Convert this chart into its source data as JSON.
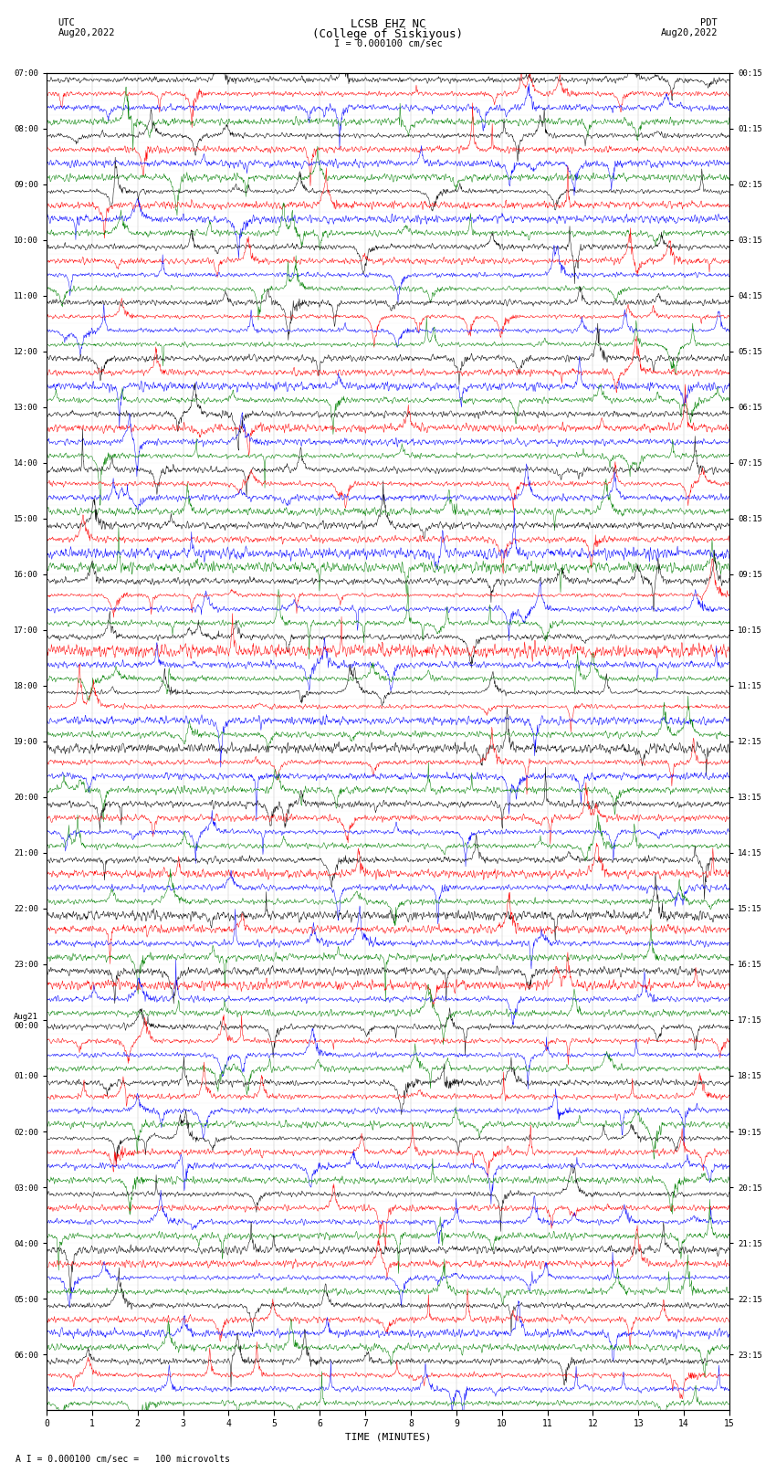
{
  "title_line1": "LCSB EHZ NC",
  "title_line2": "(College of Siskiyous)",
  "scale_text": "I = 0.000100 cm/sec",
  "footer_text": "A I = 0.000100 cm/sec =   100 microvolts",
  "xlabel": "TIME (MINUTES)",
  "bg_color": "#ffffff",
  "trace_colors": [
    "black",
    "red",
    "blue",
    "green"
  ],
  "n_rows": 96,
  "left_times": [
    "07:00",
    "",
    "",
    "",
    "08:00",
    "",
    "",
    "",
    "09:00",
    "",
    "",
    "",
    "10:00",
    "",
    "",
    "",
    "11:00",
    "",
    "",
    "",
    "12:00",
    "",
    "",
    "",
    "13:00",
    "",
    "",
    "",
    "14:00",
    "",
    "",
    "",
    "15:00",
    "",
    "",
    "",
    "16:00",
    "",
    "",
    "",
    "17:00",
    "",
    "",
    "",
    "18:00",
    "",
    "",
    "",
    "19:00",
    "",
    "",
    "",
    "20:00",
    "",
    "",
    "",
    "21:00",
    "",
    "",
    "",
    "22:00",
    "",
    "",
    "",
    "23:00",
    "",
    "",
    "",
    "Aug21\n00:00",
    "",
    "",
    "",
    "01:00",
    "",
    "",
    "",
    "02:00",
    "",
    "",
    "",
    "03:00",
    "",
    "",
    "",
    "04:00",
    "",
    "",
    "",
    "05:00",
    "",
    "",
    "",
    "06:00",
    "",
    "",
    ""
  ],
  "right_times": [
    "00:15",
    "",
    "",
    "",
    "01:15",
    "",
    "",
    "",
    "02:15",
    "",
    "",
    "",
    "03:15",
    "",
    "",
    "",
    "04:15",
    "",
    "",
    "",
    "05:15",
    "",
    "",
    "",
    "06:15",
    "",
    "",
    "",
    "07:15",
    "",
    "",
    "",
    "08:15",
    "",
    "",
    "",
    "09:15",
    "",
    "",
    "",
    "10:15",
    "",
    "",
    "",
    "11:15",
    "",
    "",
    "",
    "12:15",
    "",
    "",
    "",
    "13:15",
    "",
    "",
    "",
    "14:15",
    "",
    "",
    "",
    "15:15",
    "",
    "",
    "",
    "16:15",
    "",
    "",
    "",
    "17:15",
    "",
    "",
    "",
    "18:15",
    "",
    "",
    "",
    "19:15",
    "",
    "",
    "",
    "20:15",
    "",
    "",
    "",
    "21:15",
    "",
    "",
    "",
    "22:15",
    "",
    "",
    "",
    "23:15",
    "",
    "",
    ""
  ]
}
